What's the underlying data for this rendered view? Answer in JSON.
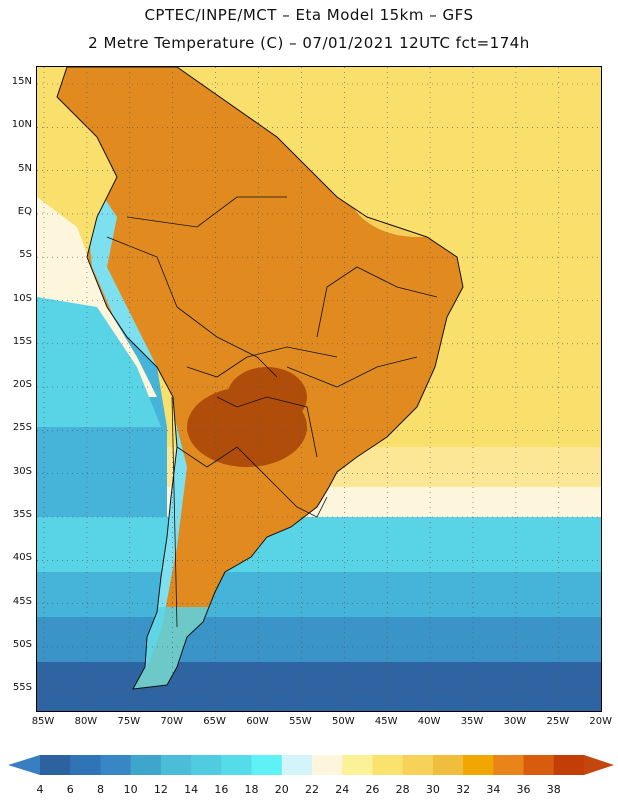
{
  "header": {
    "line1": "CPTEC/INPE/MCT –  Eta Model 15km – GFS",
    "line2": "2 Metre Temperature (C) – 07/01/2021 12UTC fct=174h"
  },
  "map": {
    "lat_labels": [
      "15N",
      "10N",
      "5N",
      "EQ",
      "5S",
      "10S",
      "15S",
      "20S",
      "25S",
      "30S",
      "35S",
      "40S",
      "45S",
      "50S",
      "55S"
    ],
    "lon_labels": [
      "85W",
      "80W",
      "75W",
      "70W",
      "65W",
      "60W",
      "55W",
      "50W",
      "45W",
      "40W",
      "35W",
      "30W",
      "25W",
      "20W"
    ]
  },
  "colorbar": {
    "labels": [
      "4",
      "6",
      "8",
      "10",
      "12",
      "14",
      "16",
      "18",
      "20",
      "22",
      "24",
      "26",
      "28",
      "30",
      "32",
      "34",
      "36",
      "38"
    ],
    "colors": [
      "#2d62a0",
      "#2e74b6",
      "#3887c4",
      "#3ea6cc",
      "#4bbdd8",
      "#50cbe0",
      "#56dbe9",
      "#5ef2f6",
      "#d2f4fa",
      "#fdf6dc",
      "#fbf196",
      "#f9e26e",
      "#f6d258",
      "#efbe3c",
      "#f0a800",
      "#e9841a",
      "#d75c0e",
      "#c23e06"
    ],
    "low_end": "#3a7ec2",
    "high_end": "#c2460e"
  },
  "palette": {
    "ocean_warm": "#f9df6c",
    "ocean_mid": "#fbe795",
    "ocean_pale": "#fdf6dc",
    "ocean_cyan": "#58d4e6",
    "ocean_sky": "#46b4d8",
    "ocean_blue": "#3a94c8",
    "ocean_deep": "#2e64a2",
    "land_hot": "#e08a20",
    "land_very_hot": "#b04d0a",
    "land_cool": "#f6cf5a",
    "andes": "#7ee0ef",
    "border": "#111111",
    "grid": "#555555"
  }
}
